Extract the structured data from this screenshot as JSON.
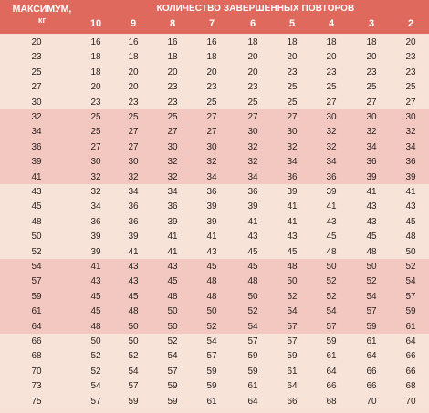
{
  "header": {
    "max_label": "МАКСИМУМ,",
    "max_unit": "кг",
    "reps_label": "КОЛИЧЕСТВО ЗАВЕРШЕННЫХ ПОВТОРОВ",
    "columns": [
      "10",
      "9",
      "8",
      "7",
      "6",
      "5",
      "4",
      "3",
      "2"
    ]
  },
  "colors": {
    "header": "#e0695d",
    "band_light": "#f8e3d9",
    "band_dark": "#f3c8c1"
  },
  "rows": [
    {
      "max": "20",
      "cells": [
        "16",
        "16",
        "16",
        "16",
        "18",
        "18",
        "18",
        "18",
        "20"
      ]
    },
    {
      "max": "23",
      "cells": [
        "18",
        "18",
        "18",
        "18",
        "20",
        "20",
        "20",
        "20",
        "23"
      ]
    },
    {
      "max": "25",
      "cells": [
        "18",
        "20",
        "20",
        "20",
        "20",
        "23",
        "23",
        "23",
        "23"
      ]
    },
    {
      "max": "27",
      "cells": [
        "20",
        "20",
        "23",
        "23",
        "23",
        "25",
        "25",
        "25",
        "25"
      ]
    },
    {
      "max": "30",
      "cells": [
        "23",
        "23",
        "23",
        "25",
        "25",
        "25",
        "27",
        "27",
        "27"
      ]
    },
    {
      "max": "32",
      "cells": [
        "25",
        "25",
        "25",
        "27",
        "27",
        "27",
        "30",
        "30",
        "30"
      ]
    },
    {
      "max": "34",
      "cells": [
        "25",
        "27",
        "27",
        "27",
        "30",
        "30",
        "32",
        "32",
        "32"
      ]
    },
    {
      "max": "36",
      "cells": [
        "27",
        "27",
        "30",
        "30",
        "32",
        "32",
        "32",
        "34",
        "34"
      ]
    },
    {
      "max": "39",
      "cells": [
        "30",
        "30",
        "32",
        "32",
        "32",
        "34",
        "34",
        "36",
        "36"
      ]
    },
    {
      "max": "41",
      "cells": [
        "32",
        "32",
        "32",
        "34",
        "34",
        "36",
        "36",
        "39",
        "39"
      ]
    },
    {
      "max": "43",
      "cells": [
        "32",
        "34",
        "34",
        "36",
        "36",
        "39",
        "39",
        "41",
        "41"
      ]
    },
    {
      "max": "45",
      "cells": [
        "34",
        "36",
        "36",
        "39",
        "39",
        "41",
        "41",
        "43",
        "43"
      ]
    },
    {
      "max": "48",
      "cells": [
        "36",
        "36",
        "39",
        "39",
        "41",
        "41",
        "43",
        "43",
        "45"
      ]
    },
    {
      "max": "50",
      "cells": [
        "39",
        "39",
        "41",
        "41",
        "43",
        "43",
        "45",
        "45",
        "48"
      ]
    },
    {
      "max": "52",
      "cells": [
        "39",
        "41",
        "41",
        "43",
        "45",
        "45",
        "48",
        "48",
        "50"
      ]
    },
    {
      "max": "54",
      "cells": [
        "41",
        "43",
        "43",
        "45",
        "45",
        "48",
        "50",
        "50",
        "52"
      ]
    },
    {
      "max": "57",
      "cells": [
        "43",
        "43",
        "45",
        "48",
        "48",
        "50",
        "52",
        "52",
        "54"
      ]
    },
    {
      "max": "59",
      "cells": [
        "45",
        "45",
        "48",
        "48",
        "50",
        "52",
        "52",
        "54",
        "57"
      ]
    },
    {
      "max": "61",
      "cells": [
        "45",
        "48",
        "50",
        "50",
        "52",
        "54",
        "54",
        "57",
        "59"
      ]
    },
    {
      "max": "64",
      "cells": [
        "48",
        "50",
        "50",
        "52",
        "54",
        "57",
        "57",
        "59",
        "61"
      ]
    },
    {
      "max": "66",
      "cells": [
        "50",
        "50",
        "52",
        "54",
        "57",
        "57",
        "59",
        "61",
        "64"
      ]
    },
    {
      "max": "68",
      "cells": [
        "52",
        "52",
        "54",
        "57",
        "59",
        "59",
        "61",
        "64",
        "66"
      ]
    },
    {
      "max": "70",
      "cells": [
        "52",
        "54",
        "57",
        "59",
        "59",
        "61",
        "64",
        "66",
        "66"
      ]
    },
    {
      "max": "73",
      "cells": [
        "54",
        "57",
        "59",
        "59",
        "61",
        "64",
        "66",
        "66",
        "68"
      ]
    },
    {
      "max": "75",
      "cells": [
        "57",
        "59",
        "59",
        "61",
        "64",
        "66",
        "68",
        "70",
        "70"
      ]
    }
  ]
}
